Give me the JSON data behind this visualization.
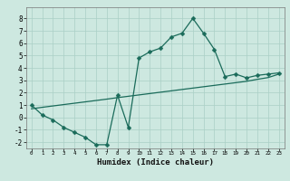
{
  "xlabel": "Humidex (Indice chaleur)",
  "background_color": "#cde8e0",
  "line_color": "#1a6b5a",
  "grid_color": "#aacfc6",
  "xlim": [
    -0.5,
    23.5
  ],
  "ylim": [
    -2.5,
    8.9
  ],
  "xticks": [
    0,
    1,
    2,
    3,
    4,
    5,
    6,
    7,
    8,
    9,
    10,
    11,
    12,
    13,
    14,
    15,
    16,
    17,
    18,
    19,
    20,
    21,
    22,
    23
  ],
  "yticks": [
    -2,
    -1,
    0,
    1,
    2,
    3,
    4,
    5,
    6,
    7,
    8
  ],
  "curve1_x": [
    0,
    1,
    2,
    3,
    4,
    5,
    6,
    7,
    8,
    9,
    10,
    11,
    12,
    13,
    14,
    15,
    16,
    17,
    18,
    19,
    20,
    21,
    22,
    23
  ],
  "curve1_y": [
    1.0,
    0.2,
    -0.2,
    -0.8,
    -1.2,
    -1.6,
    -2.2,
    -2.2,
    1.8,
    -0.8,
    4.8,
    5.3,
    5.6,
    6.5,
    6.8,
    8.0,
    6.8,
    5.5,
    3.3,
    3.5,
    3.2,
    3.4,
    3.5,
    3.6
  ],
  "curve2_x": [
    0,
    1,
    2,
    3,
    4,
    5,
    6,
    7,
    8,
    9,
    10,
    11,
    12,
    13,
    14,
    15,
    16,
    17,
    18,
    19,
    20,
    21,
    22,
    23
  ],
  "curve2_y": [
    0.7,
    0.82,
    0.93,
    1.04,
    1.15,
    1.26,
    1.37,
    1.48,
    1.6,
    1.71,
    1.82,
    1.93,
    2.04,
    2.15,
    2.26,
    2.37,
    2.48,
    2.59,
    2.7,
    2.81,
    2.92,
    3.08,
    3.22,
    3.5
  ],
  "marker_size": 2.5,
  "linewidth": 0.9,
  "xlabel_fontsize": 6.5,
  "tick_fontsize_x": 4.2,
  "tick_fontsize_y": 5.5
}
